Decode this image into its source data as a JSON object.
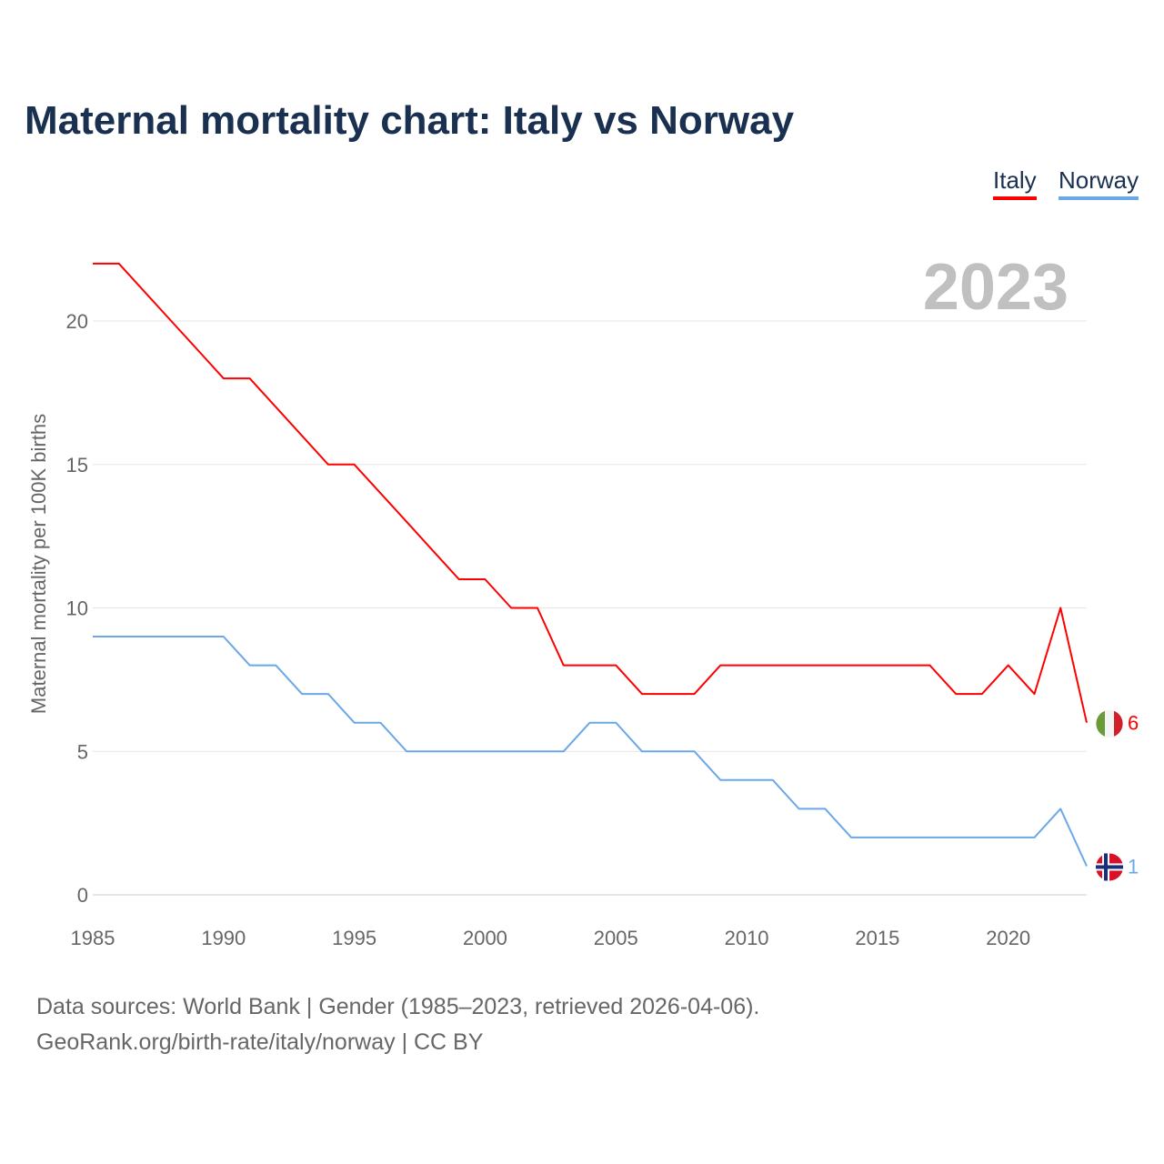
{
  "title": "Maternal mortality chart: Italy vs Norway",
  "legend": [
    "Italy",
    "Norway"
  ],
  "year_label": "2023",
  "source_line1": "Data sources: World Bank | Gender (1985–2023, retrieved 2026-04-06).",
  "source_line2": "GeoRank.org/birth-rate/italy/norway | CC BY",
  "chart_data": {
    "type": "line",
    "title": "Maternal mortality chart: Italy vs Norway",
    "xlabel": "",
    "ylabel": "Maternal mortality per 100K births",
    "xlim": [
      1985,
      2023
    ],
    "ylim": [
      0,
      22
    ],
    "xticks": [
      1985,
      1990,
      1995,
      2000,
      2005,
      2010,
      2015,
      2020
    ],
    "yticks": [
      0,
      5,
      10,
      15,
      20
    ],
    "grid": true,
    "legend_position": "top-right",
    "x": [
      1985,
      1986,
      1987,
      1988,
      1989,
      1990,
      1991,
      1992,
      1993,
      1994,
      1995,
      1996,
      1997,
      1998,
      1999,
      2000,
      2001,
      2002,
      2003,
      2004,
      2005,
      2006,
      2007,
      2008,
      2009,
      2010,
      2011,
      2012,
      2013,
      2014,
      2015,
      2016,
      2017,
      2018,
      2019,
      2020,
      2021,
      2022,
      2023
    ],
    "series": [
      {
        "name": "Italy",
        "color": "#ff0000",
        "end_label": "6",
        "values": [
          22,
          22,
          21,
          20,
          19,
          18,
          18,
          17,
          16,
          15,
          15,
          14,
          13,
          12,
          11,
          11,
          10,
          10,
          8,
          8,
          8,
          7,
          7,
          7,
          8,
          8,
          8,
          8,
          8,
          8,
          8,
          8,
          8,
          7,
          7,
          8,
          7,
          10,
          6
        ]
      },
      {
        "name": "Norway",
        "color": "#6aa8e8",
        "end_label": "1",
        "values": [
          9,
          9,
          9,
          9,
          9,
          9,
          8,
          8,
          7,
          7,
          6,
          6,
          5,
          5,
          5,
          5,
          5,
          5,
          5,
          6,
          6,
          5,
          5,
          5,
          4,
          4,
          4,
          3,
          3,
          2,
          2,
          2,
          2,
          2,
          2,
          2,
          2,
          3,
          1
        ]
      }
    ]
  }
}
